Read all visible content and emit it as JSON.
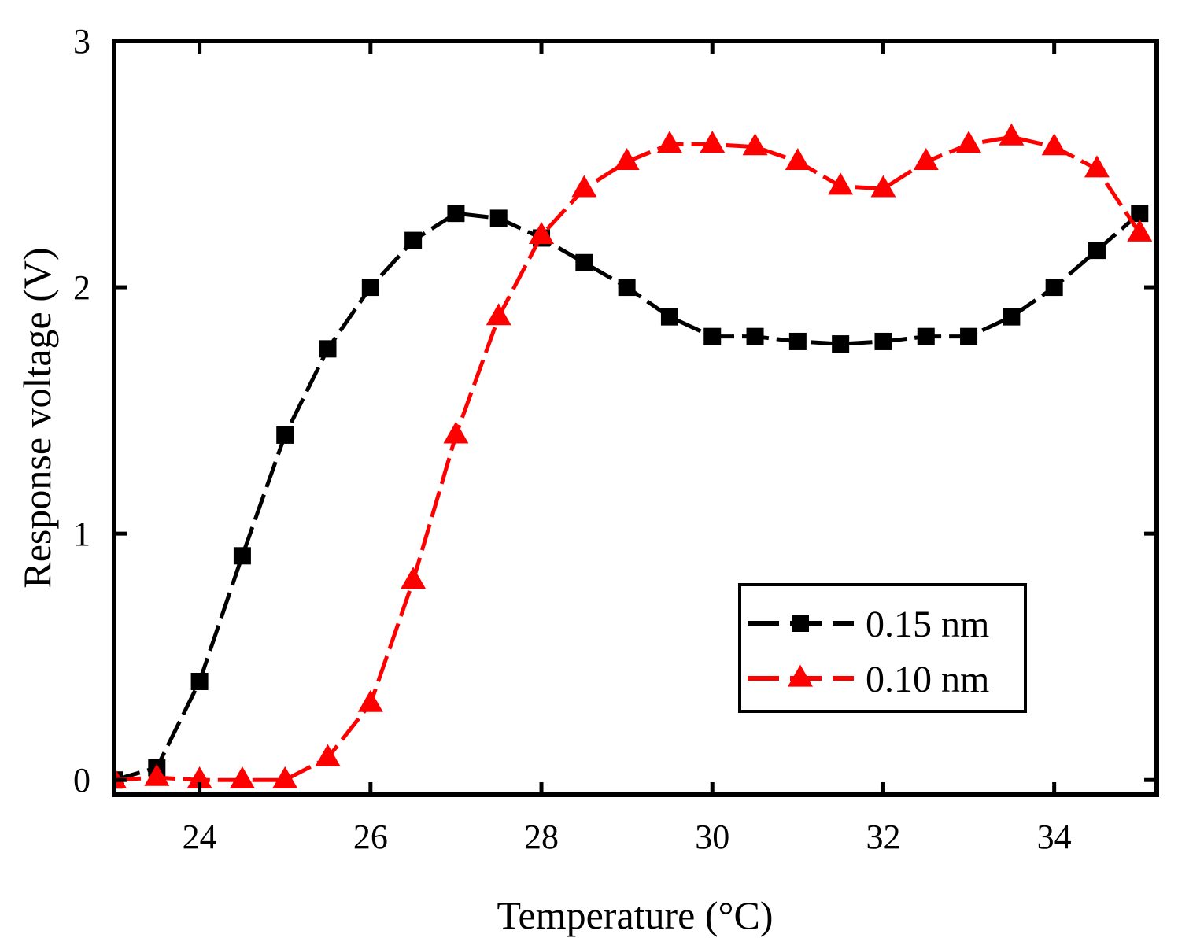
{
  "chart_data": {
    "type": "line",
    "title": "",
    "xlabel": "Temperature (°C)",
    "ylabel": "Response voltage (V)",
    "xlim": [
      23,
      35.2
    ],
    "ylim": [
      -0.06,
      3
    ],
    "x_ticks": [
      24,
      26,
      28,
      30,
      32,
      34
    ],
    "x_tick_labels": [
      "24",
      "26",
      "28",
      "30",
      "32",
      "34"
    ],
    "y_ticks": [
      0,
      1,
      2,
      3
    ],
    "y_tick_labels": [
      "0",
      "1",
      "2",
      "3"
    ],
    "grid": false,
    "legend_position": "bottom-right",
    "x": [
      23,
      23.5,
      24,
      24.5,
      25,
      25.5,
      26,
      26.5,
      27,
      27.5,
      28,
      28.5,
      29,
      29.5,
      30,
      30.5,
      31,
      31.5,
      32,
      32.5,
      33,
      33.5,
      34,
      34.5,
      35
    ],
    "series": [
      {
        "name": "0.15 nm",
        "color": "#000000",
        "marker": "square",
        "values": [
          0.0,
          0.05,
          0.4,
          0.91,
          1.4,
          1.75,
          2.0,
          2.19,
          2.3,
          2.28,
          2.2,
          2.1,
          2.0,
          1.88,
          1.8,
          1.8,
          1.78,
          1.77,
          1.78,
          1.8,
          1.8,
          1.88,
          2.0,
          2.15,
          2.3
        ]
      },
      {
        "name": "0.10 nm",
        "color": "#ff0000",
        "marker": "triangle",
        "values": [
          0.0,
          0.01,
          0.0,
          0.0,
          0.0,
          0.09,
          0.31,
          0.81,
          1.4,
          1.88,
          2.21,
          2.4,
          2.51,
          2.58,
          2.58,
          2.57,
          2.51,
          2.41,
          2.4,
          2.51,
          2.58,
          2.61,
          2.57,
          2.48,
          2.22
        ]
      }
    ]
  }
}
